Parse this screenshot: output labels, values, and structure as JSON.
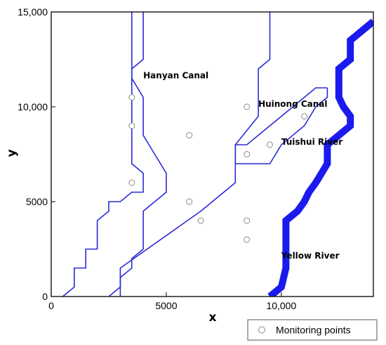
{
  "chart_data": {
    "type": "map",
    "xlabel": "x",
    "ylabel": "y",
    "xlim": [
      0,
      14000
    ],
    "ylim": [
      0,
      15000
    ],
    "x_ticks": [
      {
        "value": 0,
        "label": "0"
      },
      {
        "value": 5000,
        "label": "5000"
      },
      {
        "value": 10000,
        "label": "10,000"
      }
    ],
    "y_ticks": [
      {
        "value": 0,
        "label": "0"
      },
      {
        "value": 5000,
        "label": "5000"
      },
      {
        "value": 10000,
        "label": "10,000"
      },
      {
        "value": 15000,
        "label": "15,000"
      }
    ],
    "colors": {
      "canal": "#2a2ad8",
      "river": "#1a1aee",
      "axis": "#000000",
      "marker": "#8a8a8a"
    },
    "features": [
      {
        "label": "Hanyan Canal",
        "kind": "canal",
        "label_at": [
          4000,
          11500
        ],
        "banks": [
          [
            [
              500,
              0
            ],
            [
              1000,
              500
            ],
            [
              1000,
              1500
            ],
            [
              1500,
              1500
            ],
            [
              1500,
              2500
            ],
            [
              2000,
              2500
            ],
            [
              2000,
              4000
            ],
            [
              2500,
              4500
            ],
            [
              2500,
              5000
            ],
            [
              3000,
              5000
            ],
            [
              3500,
              5500
            ],
            [
              4000,
              5500
            ],
            [
              4000,
              6000
            ],
            [
              4000,
              6500
            ],
            [
              3500,
              7000
            ],
            [
              3500,
              7500
            ],
            [
              3500,
              8500
            ],
            [
              3500,
              9000
            ],
            [
              3500,
              9500
            ],
            [
              3500,
              10500
            ],
            [
              3500,
              11500
            ],
            [
              3500,
              12000
            ],
            [
              3500,
              12500
            ],
            [
              3500,
              13500
            ],
            [
              3500,
              15000
            ]
          ],
          [
            [
              2500,
              0
            ],
            [
              3000,
              500
            ],
            [
              3000,
              1000
            ],
            [
              3500,
              1500
            ],
            [
              3500,
              2000
            ],
            [
              4000,
              2500
            ],
            [
              4000,
              3000
            ],
            [
              4000,
              3500
            ],
            [
              4000,
              4000
            ],
            [
              4000,
              4500
            ],
            [
              4500,
              5000
            ],
            [
              5000,
              5500
            ],
            [
              5000,
              6500
            ],
            [
              4500,
              7500
            ],
            [
              4000,
              8500
            ],
            [
              4000,
              9500
            ],
            [
              4000,
              10500
            ],
            [
              3500,
              11500
            ],
            [
              3500,
              12000
            ],
            [
              4000,
              12500
            ],
            [
              4000,
              13500
            ],
            [
              4000,
              15000
            ]
          ]
        ]
      },
      {
        "label": "Huinong Canal",
        "kind": "canal",
        "label_at": [
          9000,
          10000
        ],
        "banks": [
          [
            [
              3000,
              0
            ],
            [
              3000,
              1500
            ],
            [
              6500,
              4500
            ],
            [
              8000,
              6000
            ],
            [
              8000,
              7000
            ],
            [
              8000,
              8000
            ],
            [
              9000,
              9500
            ],
            [
              9000,
              12000
            ],
            [
              9500,
              12500
            ],
            [
              9500,
              15000
            ]
          ]
        ]
      },
      {
        "label": "Tuishui River",
        "kind": "canal",
        "label_at": [
          10000,
          8000
        ],
        "banks": [
          [
            [
              8000,
              7000
            ],
            [
              9500,
              7000
            ],
            [
              10000,
              8000
            ],
            [
              11000,
              9000
            ],
            [
              11500,
              10000
            ],
            [
              12000,
              10500
            ],
            [
              12000,
              11000
            ]
          ],
          [
            [
              8000,
              7000
            ],
            [
              8000,
              8000
            ],
            [
              8500,
              8000
            ],
            [
              9000,
              8500
            ],
            [
              9500,
              9000
            ],
            [
              10500,
              10000
            ],
            [
              11000,
              10500
            ],
            [
              11500,
              11000
            ],
            [
              12000,
              11000
            ]
          ]
        ]
      },
      {
        "label": "Yellow River",
        "kind": "river",
        "label_at": [
          10000,
          2000
        ],
        "centerline": [
          [
            9500,
            0
          ],
          [
            10000,
            500
          ],
          [
            10200,
            1500
          ],
          [
            10200,
            2500
          ],
          [
            10200,
            4000
          ],
          [
            10700,
            4500
          ],
          [
            11000,
            5000
          ],
          [
            11200,
            5500
          ],
          [
            11500,
            6000
          ],
          [
            12000,
            7000
          ],
          [
            12000,
            8000
          ],
          [
            12500,
            8500
          ],
          [
            13000,
            9000
          ],
          [
            13000,
            9500
          ],
          [
            12700,
            10000
          ],
          [
            12500,
            10500
          ],
          [
            12500,
            11000
          ],
          [
            12500,
            12000
          ],
          [
            13000,
            12500
          ],
          [
            13000,
            13500
          ],
          [
            13500,
            14000
          ],
          [
            14000,
            14500
          ]
        ]
      }
    ],
    "monitoring_points": [
      [
        3500,
        10500
      ],
      [
        3500,
        9000
      ],
      [
        3500,
        6000
      ],
      [
        6000,
        8500
      ],
      [
        6000,
        5000
      ],
      [
        6500,
        4000
      ],
      [
        8500,
        10000
      ],
      [
        8500,
        7500
      ],
      [
        9500,
        8000
      ],
      [
        11000,
        9500
      ],
      [
        8500,
        4000
      ],
      [
        8500,
        3000
      ]
    ],
    "legend": {
      "label": "Monitoring points",
      "position": "bottom-right"
    }
  }
}
